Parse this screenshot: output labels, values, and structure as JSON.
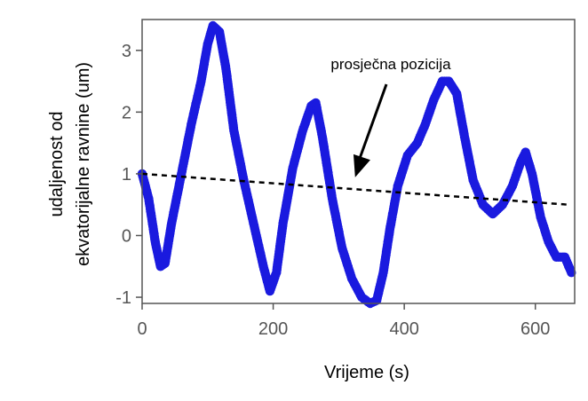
{
  "chart_data": {
    "type": "scatter",
    "title": "",
    "xlabel": "Vrijeme (s)",
    "ylabel": "udaljenost od ekvatorijalne ravnine (um)",
    "ylabel_lines": [
      "udaljenost od",
      "ekvatorijalne ravnine (um)"
    ],
    "xlim": [
      0,
      660
    ],
    "ylim": [
      -1.1,
      3.5
    ],
    "xticks": [
      0,
      200,
      400,
      600
    ],
    "yticks": [
      -1,
      0,
      1,
      2,
      3
    ],
    "grid": false,
    "series": [
      {
        "color": "#1a1adf",
        "points": [
          [
            0,
            1.0
          ],
          [
            10,
            0.6
          ],
          [
            20,
            -0.1
          ],
          [
            28,
            -0.5
          ],
          [
            35,
            -0.45
          ],
          [
            45,
            0.2
          ],
          [
            60,
            1.0
          ],
          [
            75,
            1.8
          ],
          [
            90,
            2.5
          ],
          [
            100,
            3.1
          ],
          [
            108,
            3.4
          ],
          [
            118,
            3.3
          ],
          [
            128,
            2.7
          ],
          [
            140,
            1.7
          ],
          [
            155,
            0.9
          ],
          [
            170,
            0.2
          ],
          [
            185,
            -0.5
          ],
          [
            195,
            -0.9
          ],
          [
            205,
            -0.6
          ],
          [
            215,
            0.2
          ],
          [
            230,
            1.1
          ],
          [
            245,
            1.7
          ],
          [
            258,
            2.1
          ],
          [
            265,
            2.15
          ],
          [
            275,
            1.6
          ],
          [
            290,
            0.6
          ],
          [
            305,
            -0.2
          ],
          [
            320,
            -0.7
          ],
          [
            335,
            -1.0
          ],
          [
            348,
            -1.1
          ],
          [
            358,
            -1.05
          ],
          [
            368,
            -0.6
          ],
          [
            378,
            0.1
          ],
          [
            390,
            0.8
          ],
          [
            405,
            1.3
          ],
          [
            420,
            1.5
          ],
          [
            432,
            1.8
          ],
          [
            445,
            2.2
          ],
          [
            458,
            2.5
          ],
          [
            468,
            2.5
          ],
          [
            480,
            2.3
          ],
          [
            492,
            1.6
          ],
          [
            505,
            0.9
          ],
          [
            520,
            0.5
          ],
          [
            535,
            0.35
          ],
          [
            550,
            0.5
          ],
          [
            565,
            0.8
          ],
          [
            578,
            1.2
          ],
          [
            585,
            1.35
          ],
          [
            595,
            1.0
          ],
          [
            608,
            0.3
          ],
          [
            620,
            -0.1
          ],
          [
            632,
            -0.35
          ],
          [
            645,
            -0.35
          ],
          [
            655,
            -0.6
          ]
        ]
      }
    ],
    "trend_line": {
      "label": "prosječna pozicija",
      "x": [
        0,
        650
      ],
      "y": [
        1.0,
        0.5
      ],
      "color": "#000000"
    },
    "annotation": {
      "text": "prosječna pozicija",
      "arrow_to": [
        325,
        0.8
      ]
    }
  }
}
